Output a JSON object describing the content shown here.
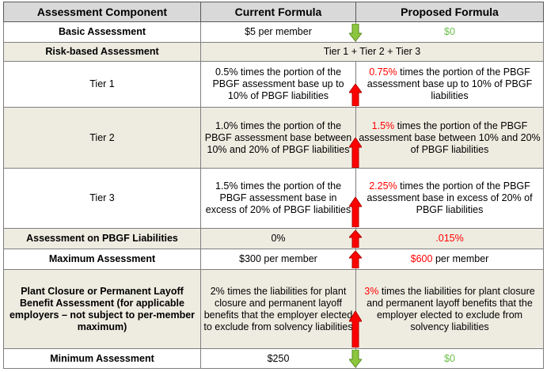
{
  "headers": {
    "component": "Assessment Component",
    "current": "Current Formula",
    "proposed": "Proposed Formula"
  },
  "rows": {
    "basic": {
      "component": "Basic Assessment",
      "current": "$5 per member",
      "proposed_value": "$0",
      "change": "decrease"
    },
    "risk": {
      "component": "Risk-based Assessment",
      "merged": "Tier 1 + Tier 2 + Tier 3"
    },
    "tier1": {
      "component": "Tier 1",
      "current": "0.5% times the portion of the PBGF assessment base up to 10% of PBGF liabilities",
      "proposed_highlight": "0.75%",
      "proposed_rest": " times the portion of the PBGF assessment base up to 10% of PBGF liabilities",
      "change": "increase"
    },
    "tier2": {
      "component": "Tier 2",
      "current": "1.0% times the portion of the PBGF assessment base between 10% and 20% of PBGF liabilities",
      "proposed_highlight": "1.5%",
      "proposed_rest": " times the portion of the PBGF assessment base between 10% and 20% of PBGF liabilities",
      "change": "increase"
    },
    "tier3": {
      "component": "Tier 3",
      "current": "1.5% times the portion of the PBGF assessment base in excess of 20% of PBGF liabilities",
      "proposed_highlight": "2.25%",
      "proposed_rest": " times the portion of the PBGF assessment base in excess of 20% of PBGF liabilities",
      "change": "increase"
    },
    "liabilities": {
      "component": "Assessment on PBGF Liabilities",
      "current": "0%",
      "proposed_value": ".015%",
      "change": "increase"
    },
    "maximum": {
      "component": "Maximum Assessment",
      "current": "$300 per member",
      "proposed_highlight": "$600",
      "proposed_rest": " per member",
      "change": "increase"
    },
    "plant": {
      "component": "Plant Closure or Permanent Layoff Benefit Assessment (for applicable employers – not subject to per-member maximum)",
      "current": "2% times the liabilities for plant closure and permanent layoff benefits that the employer elected to exclude from solvency liabilities",
      "proposed_highlight": "3%",
      "proposed_rest": " times the liabilities for plant closure and permanent layoff benefits that the employer elected to exclude from solvency liabilities",
      "change": "increase"
    },
    "minimum": {
      "component": "Minimum Assessment",
      "current": "$250",
      "proposed_value": "$0",
      "change": "decrease"
    }
  },
  "colors": {
    "increase_arrow": "#ff0000",
    "decrease_arrow": "#8cc63f",
    "highlight_red": "#ff0000",
    "highlight_green": "#6cc04a"
  }
}
